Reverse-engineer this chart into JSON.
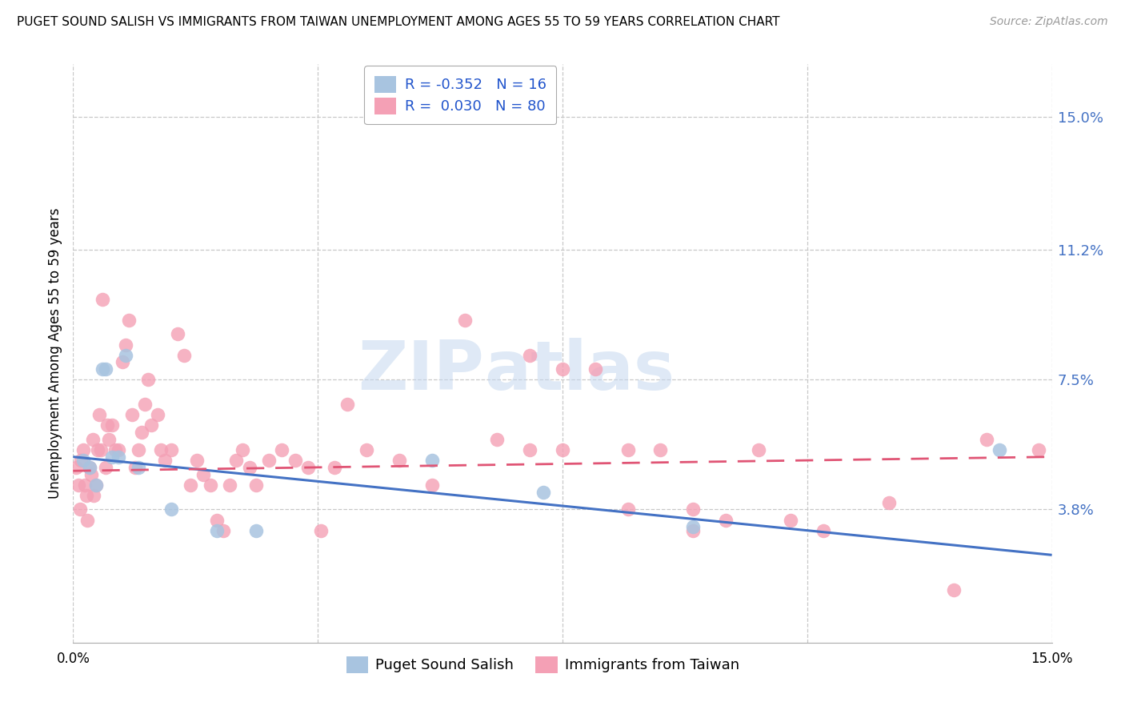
{
  "title": "PUGET SOUND SALISH VS IMMIGRANTS FROM TAIWAN UNEMPLOYMENT AMONG AGES 55 TO 59 YEARS CORRELATION CHART",
  "source": "Source: ZipAtlas.com",
  "ylabel": "Unemployment Among Ages 55 to 59 years",
  "ytick_values": [
    3.8,
    7.5,
    11.2,
    15.0
  ],
  "ytick_labels": [
    "3.8%",
    "7.5%",
    "11.2%",
    "15.0%"
  ],
  "xlim": [
    0.0,
    15.0
  ],
  "ylim": [
    0.0,
    16.5
  ],
  "legend_group1_label": "Puget Sound Salish",
  "legend_group2_label": "Immigrants from Taiwan",
  "legend_R1_val": "-0.352",
  "legend_N1_val": "16",
  "legend_R2_val": "0.030",
  "legend_N2_val": "80",
  "color_blue": "#a8c4e0",
  "color_pink": "#f4a0b5",
  "line_color_blue": "#4472c4",
  "line_color_pink": "#e05575",
  "watermark_zip": "ZIP",
  "watermark_atlas": "atlas",
  "blue_x": [
    0.15,
    0.25,
    0.35,
    0.45,
    0.5,
    0.6,
    0.7,
    0.8,
    1.0,
    1.5,
    2.2,
    2.8,
    5.5,
    7.2,
    9.5,
    14.2
  ],
  "blue_y": [
    5.2,
    5.0,
    4.5,
    7.8,
    7.8,
    5.3,
    5.3,
    8.2,
    5.0,
    3.8,
    3.2,
    3.2,
    5.2,
    4.3,
    3.3,
    5.5
  ],
  "pink_x": [
    0.05,
    0.08,
    0.1,
    0.12,
    0.15,
    0.18,
    0.2,
    0.22,
    0.25,
    0.28,
    0.3,
    0.32,
    0.35,
    0.38,
    0.4,
    0.42,
    0.45,
    0.5,
    0.52,
    0.55,
    0.6,
    0.65,
    0.7,
    0.75,
    0.8,
    0.85,
    0.9,
    0.95,
    1.0,
    1.05,
    1.1,
    1.15,
    1.2,
    1.3,
    1.35,
    1.4,
    1.5,
    1.6,
    1.7,
    1.8,
    1.9,
    2.0,
    2.1,
    2.2,
    2.3,
    2.4,
    2.5,
    2.6,
    2.7,
    2.8,
    3.0,
    3.2,
    3.4,
    3.6,
    3.8,
    4.0,
    4.2,
    4.5,
    5.0,
    5.5,
    6.0,
    6.5,
    7.0,
    7.5,
    8.0,
    8.5,
    9.0,
    9.5,
    10.5,
    11.5,
    12.5,
    13.5,
    14.0,
    7.0,
    7.5,
    8.5,
    9.5,
    10.0,
    11.0,
    14.8
  ],
  "pink_y": [
    5.0,
    4.5,
    3.8,
    5.2,
    5.5,
    4.5,
    4.2,
    3.5,
    5.0,
    4.8,
    5.8,
    4.2,
    4.5,
    5.5,
    6.5,
    5.5,
    9.8,
    5.0,
    6.2,
    5.8,
    6.2,
    5.5,
    5.5,
    8.0,
    8.5,
    9.2,
    6.5,
    5.0,
    5.5,
    6.0,
    6.8,
    7.5,
    6.2,
    6.5,
    5.5,
    5.2,
    5.5,
    8.8,
    8.2,
    4.5,
    5.2,
    4.8,
    4.5,
    3.5,
    3.2,
    4.5,
    5.2,
    5.5,
    5.0,
    4.5,
    5.2,
    5.5,
    5.2,
    5.0,
    3.2,
    5.0,
    6.8,
    5.5,
    5.2,
    4.5,
    9.2,
    5.8,
    8.2,
    7.8,
    7.8,
    5.5,
    5.5,
    3.8,
    5.5,
    3.2,
    4.0,
    1.5,
    5.8,
    5.5,
    5.5,
    3.8,
    3.2,
    3.5,
    3.5,
    5.5
  ],
  "blue_line_x0": 0.0,
  "blue_line_y0": 5.3,
  "blue_line_x1": 15.0,
  "blue_line_y1": 2.5,
  "pink_line_x0": 0.0,
  "pink_line_y0": 4.9,
  "pink_line_x1": 15.0,
  "pink_line_y1": 5.3
}
